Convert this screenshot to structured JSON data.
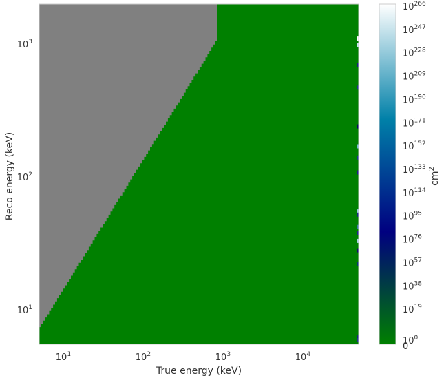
{
  "chart_data": {
    "type": "heatmap",
    "title": "",
    "xlabel": "True energy (keV)",
    "ylabel": "Reco energy (keV)",
    "xscale": "log",
    "yscale": "log",
    "xlim": [
      5,
      50000
    ],
    "ylim": [
      5.5,
      2000
    ],
    "xticks": [
      {
        "value": 10,
        "base": "10",
        "exp": "1"
      },
      {
        "value": 100,
        "base": "10",
        "exp": "2"
      },
      {
        "value": 1000,
        "base": "10",
        "exp": "3"
      },
      {
        "value": 10000,
        "base": "10",
        "exp": "4"
      }
    ],
    "yticks": [
      {
        "value": 10,
        "base": "10",
        "exp": "1"
      },
      {
        "value": 100,
        "base": "10",
        "exp": "2"
      },
      {
        "value": 1000,
        "base": "10",
        "exp": "3"
      }
    ],
    "grid": false,
    "empty_region_color": "#808080",
    "dominant_color": "#008000",
    "diagonal_boundary": {
      "x_start": 5,
      "y_start": 7,
      "x_end": 850,
      "y_end": 1050
    },
    "vertical_boundary_x": 850,
    "colorbar": {
      "label_base": "cm",
      "label_exp": "2",
      "scale": "log",
      "colormap": "ocean",
      "ticks": [
        {
          "base": "10",
          "exp": "0"
        },
        {
          "base": "10",
          "exp": "19"
        },
        {
          "base": "10",
          "exp": "38"
        },
        {
          "base": "10",
          "exp": "57"
        },
        {
          "base": "10",
          "exp": "76"
        },
        {
          "base": "10",
          "exp": "95"
        },
        {
          "base": "10",
          "exp": "114"
        },
        {
          "base": "10",
          "exp": "133"
        },
        {
          "base": "10",
          "exp": "152"
        },
        {
          "base": "10",
          "exp": "171"
        },
        {
          "base": "10",
          "exp": "190"
        },
        {
          "base": "10",
          "exp": "209"
        },
        {
          "base": "10",
          "exp": "228"
        },
        {
          "base": "10",
          "exp": "247"
        },
        {
          "base": "10",
          "exp": "266"
        }
      ],
      "extra_tick": "0",
      "colors": {
        "low": "#008000",
        "mid": "#000080",
        "high": "#ffffff"
      }
    },
    "edge_column_x": 48000,
    "edge_column_cells": [
      {
        "y": 1100,
        "color": "#ffffff"
      },
      {
        "y": 980,
        "color": "#c8e6f0"
      },
      {
        "y": 700,
        "color": "#1a237e"
      },
      {
        "y": 470,
        "color": "#26378a"
      },
      {
        "y": 240,
        "color": "#0a0a60"
      },
      {
        "y": 170,
        "color": "#7ab8d0"
      },
      {
        "y": 140,
        "color": "#1f3a8a"
      },
      {
        "y": 108,
        "color": "#20208a"
      },
      {
        "y": 55,
        "color": "#9ccde0"
      },
      {
        "y": 52,
        "color": "#1a2a80"
      },
      {
        "y": 42,
        "color": "#3e7ca0"
      },
      {
        "y": 38,
        "color": "#22288a"
      },
      {
        "y": 33,
        "color": "#a8d4e6"
      },
      {
        "y": 28,
        "color": "#10106a"
      },
      {
        "y": 22,
        "color": "#0a3a70"
      },
      {
        "y": 6.2,
        "color": "#1a2a7a"
      },
      {
        "y": 5.9,
        "color": "#253590"
      }
    ]
  }
}
